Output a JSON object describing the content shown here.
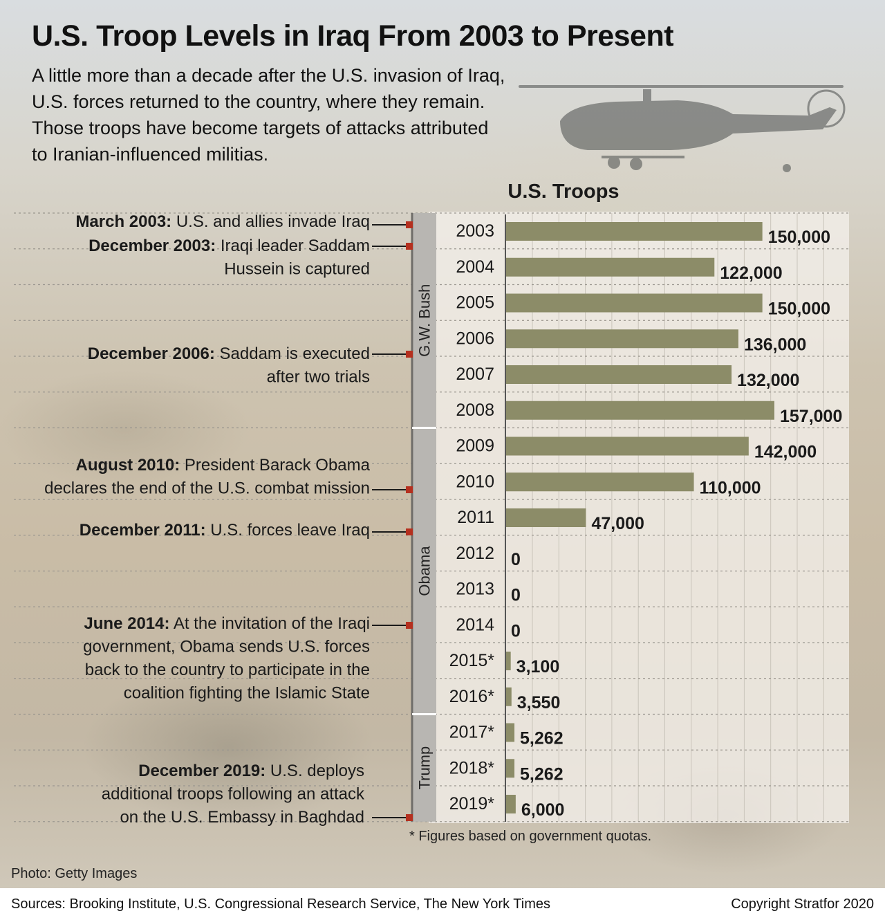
{
  "header": {
    "title": "U.S. Troop Levels in Iraq From 2003 to Present",
    "subtitle": "A little more than a decade after the U.S. invasion of Iraq, U.S. forces returned to the country, where they remain. Those troops have become targets of attacks attributed to Iranian-influenced militias."
  },
  "chart_data": {
    "type": "bar",
    "orientation": "horizontal",
    "title": "U.S. Troops",
    "categories": [
      "2003",
      "2004",
      "2005",
      "2006",
      "2007",
      "2008",
      "2009",
      "2010",
      "2011",
      "2012",
      "2013",
      "2014",
      "2015*",
      "2016*",
      "2017*",
      "2018*",
      "2019*"
    ],
    "values": [
      150000,
      122000,
      150000,
      136000,
      132000,
      157000,
      142000,
      110000,
      47000,
      0,
      0,
      0,
      3100,
      3550,
      5262,
      5262,
      6000
    ],
    "value_labels": [
      "150,000",
      "122,000",
      "150,000",
      "136,000",
      "132,000",
      "157,000",
      "142,000",
      "110,000",
      "47,000",
      "0",
      "0",
      "0",
      "3,100",
      "3,550",
      "5,262",
      "5,262",
      "6,000"
    ],
    "xlim": [
      0,
      157000
    ],
    "grid": true,
    "bar_color": "#8c8c68",
    "presidencies": [
      {
        "name": "G.W. Bush",
        "start": "2003",
        "end": "2008"
      },
      {
        "name": "Obama",
        "start": "2009",
        "end": "2016*"
      },
      {
        "name": "Trump",
        "start": "2017*",
        "end": "2019*"
      }
    ],
    "annotations": [
      {
        "year": "2003",
        "date": "March  2003:",
        "lines": [
          " U.S. and allies invade Iraq"
        ]
      },
      {
        "year": "2003",
        "date": "December 2003:",
        "lines": [
          " Iraqi leader Saddam",
          "Hussein is captured"
        ]
      },
      {
        "year": "2006",
        "date": "December 2006:",
        "lines": [
          " Saddam is executed",
          "after two trials"
        ]
      },
      {
        "year": "2010",
        "date": "August 2010:",
        "lines": [
          " President Barack Obama",
          "declares the end of the U.S. combat mission"
        ]
      },
      {
        "year": "2011",
        "date": "December 2011:",
        "lines": [
          " U.S. forces leave Iraq"
        ]
      },
      {
        "year": "2014",
        "date": "June 2014:",
        "lines": [
          " At the invitation of the Iraqi",
          "government, Obama sends U.S. forces",
          "back to the country to participate in the",
          "coalition fighting the Islamic State"
        ]
      },
      {
        "year": "2019*",
        "date": "December 2019:",
        "lines": [
          " U.S. deploys",
          "additional troops following an attack",
          "on the U.S. Embassy in Baghdad"
        ]
      }
    ],
    "marker_color": "#b5301f",
    "footnote": "* Figures based on government quotas."
  },
  "footer": {
    "photo_credit": "Photo: Getty Images",
    "sources": "Sources: Brooking Institute, U.S. Congressional Research Service, The New York Times",
    "copyright": "Copyright Stratfor 2020"
  }
}
